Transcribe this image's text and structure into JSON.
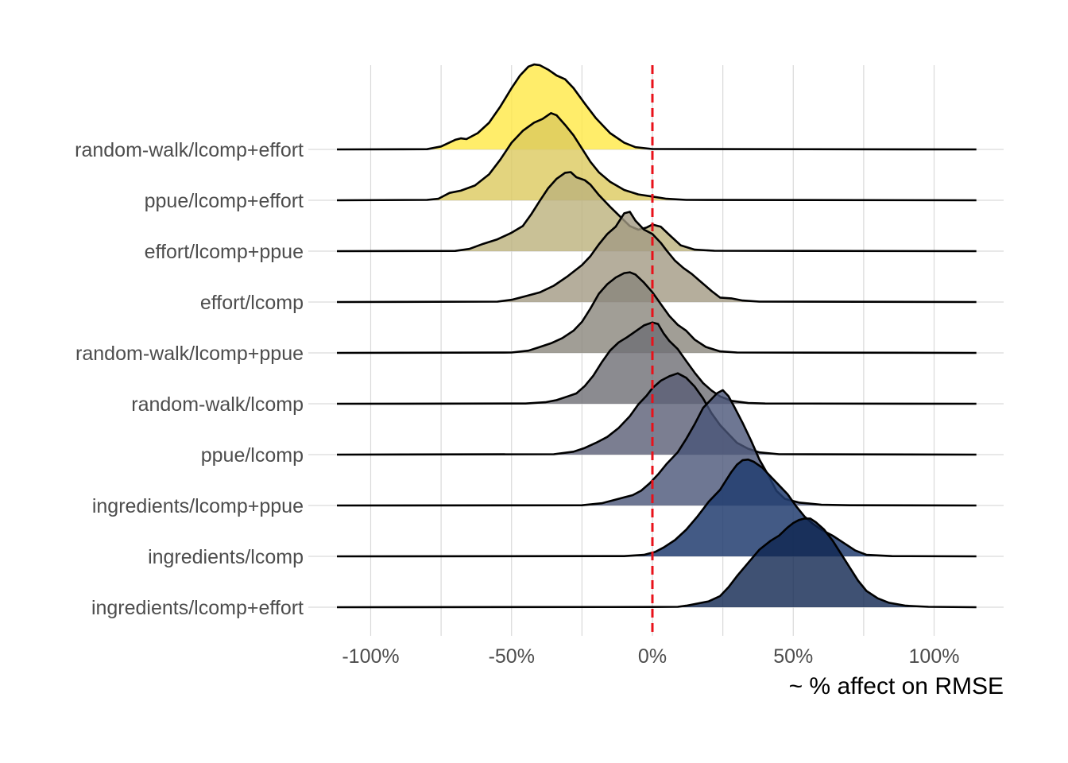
{
  "chart_data": {
    "type": "ridgeline",
    "title": "",
    "xlabel": "~ % affect on RMSE",
    "ylabel": "",
    "xlim": [
      -112,
      115
    ],
    "x_ticks": [
      -100,
      -50,
      0,
      50,
      100
    ],
    "x_tick_labels": [
      "-100%",
      "-50%",
      "0%",
      "50%",
      "100%"
    ],
    "grid": true,
    "reference_line": {
      "x": 0,
      "color": "#e8111a",
      "style": "dashed"
    },
    "categories": [
      "random-walk/lcomp+effort",
      "ppue/lcomp+effort",
      "effort/lcomp+ppue",
      "effort/lcomp",
      "random-walk/lcomp+ppue",
      "random-walk/lcomp",
      "ppue/lcomp",
      "ingredients/lcomp+ppue",
      "ingredients/lcomp",
      "ingredients/lcomp+effort"
    ],
    "series": [
      {
        "name": "random-walk/lcomp+effort",
        "color": "#ffe945",
        "opacity": 0.8,
        "density": [
          [
            -112,
            0
          ],
          [
            -80,
            0.003
          ],
          [
            -75,
            0.04
          ],
          [
            -70,
            0.13
          ],
          [
            -68,
            0.15
          ],
          [
            -66,
            0.14
          ],
          [
            -62,
            0.22
          ],
          [
            -58,
            0.36
          ],
          [
            -54,
            0.58
          ],
          [
            -50,
            0.83
          ],
          [
            -47,
            1.0
          ],
          [
            -44,
            1.12
          ],
          [
            -42,
            1.15
          ],
          [
            -40,
            1.14
          ],
          [
            -37,
            1.08
          ],
          [
            -34,
            1.0
          ],
          [
            -31,
            0.95
          ],
          [
            -28,
            0.83
          ],
          [
            -24,
            0.62
          ],
          [
            -20,
            0.42
          ],
          [
            -15,
            0.22
          ],
          [
            -10,
            0.09
          ],
          [
            -6,
            0.03
          ],
          [
            0,
            0.005
          ],
          [
            115,
            0
          ]
        ]
      },
      {
        "name": "ppue/lcomp+effort",
        "color": "#dcc95e",
        "opacity": 0.8,
        "density": [
          [
            -112,
            0
          ],
          [
            -80,
            0.005
          ],
          [
            -76,
            0.02
          ],
          [
            -74,
            0.06
          ],
          [
            -72,
            0.1
          ],
          [
            -68,
            0.13
          ],
          [
            -63,
            0.2
          ],
          [
            -58,
            0.35
          ],
          [
            -54,
            0.55
          ],
          [
            -50,
            0.78
          ],
          [
            -46,
            0.94
          ],
          [
            -42,
            1.05
          ],
          [
            -39,
            1.1
          ],
          [
            -36,
            1.18
          ],
          [
            -34,
            1.15
          ],
          [
            -31,
            1.02
          ],
          [
            -28,
            0.88
          ],
          [
            -25,
            0.7
          ],
          [
            -22,
            0.52
          ],
          [
            -19,
            0.38
          ],
          [
            -15,
            0.25
          ],
          [
            -10,
            0.14
          ],
          [
            -5,
            0.08
          ],
          [
            0,
            0.05
          ],
          [
            5,
            0.02
          ],
          [
            12,
            0.005
          ],
          [
            115,
            0
          ]
        ]
      },
      {
        "name": "effort/lcomp+ppue",
        "color": "#bcb27c",
        "opacity": 0.8,
        "density": [
          [
            -112,
            0
          ],
          [
            -70,
            0.003
          ],
          [
            -65,
            0.03
          ],
          [
            -60,
            0.1
          ],
          [
            -55,
            0.16
          ],
          [
            -50,
            0.25
          ],
          [
            -46,
            0.34
          ],
          [
            -43,
            0.5
          ],
          [
            -40,
            0.68
          ],
          [
            -37,
            0.85
          ],
          [
            -34,
            0.98
          ],
          [
            -31,
            1.06
          ],
          [
            -29,
            1.07
          ],
          [
            -27,
            1.0
          ],
          [
            -24,
            0.96
          ],
          [
            -22,
            0.9
          ],
          [
            -19,
            0.76
          ],
          [
            -15,
            0.6
          ],
          [
            -11,
            0.45
          ],
          [
            -8,
            0.34
          ],
          [
            -5,
            0.29
          ],
          [
            -2,
            0.32
          ],
          [
            0,
            0.36
          ],
          [
            3,
            0.33
          ],
          [
            6,
            0.22
          ],
          [
            10,
            0.08
          ],
          [
            15,
            0.02
          ],
          [
            22,
            0.005
          ],
          [
            115,
            0
          ]
        ]
      },
      {
        "name": "effort/lcomp",
        "color": "#a29a83",
        "opacity": 0.8,
        "density": [
          [
            -112,
            0
          ],
          [
            -55,
            0.005
          ],
          [
            -50,
            0.03
          ],
          [
            -45,
            0.08
          ],
          [
            -40,
            0.13
          ],
          [
            -35,
            0.22
          ],
          [
            -30,
            0.35
          ],
          [
            -25,
            0.5
          ],
          [
            -22,
            0.62
          ],
          [
            -19,
            0.78
          ],
          [
            -16,
            0.92
          ],
          [
            -13,
            1.02
          ],
          [
            -10,
            1.2
          ],
          [
            -8,
            1.22
          ],
          [
            -6,
            1.1
          ],
          [
            -3,
            0.98
          ],
          [
            0,
            0.92
          ],
          [
            3,
            0.8
          ],
          [
            5,
            0.7
          ],
          [
            8,
            0.56
          ],
          [
            11,
            0.46
          ],
          [
            14,
            0.38
          ],
          [
            17,
            0.28
          ],
          [
            21,
            0.15
          ],
          [
            24,
            0.06
          ],
          [
            28,
            0.05
          ],
          [
            32,
            0.02
          ],
          [
            38,
            0.005
          ],
          [
            115,
            0
          ]
        ]
      },
      {
        "name": "random-walk/lcomp+ppue",
        "color": "#8a867c",
        "opacity": 0.8,
        "density": [
          [
            -112,
            0
          ],
          [
            -50,
            0.005
          ],
          [
            -44,
            0.03
          ],
          [
            -40,
            0.08
          ],
          [
            -36,
            0.13
          ],
          [
            -32,
            0.2
          ],
          [
            -28,
            0.3
          ],
          [
            -25,
            0.42
          ],
          [
            -22,
            0.6
          ],
          [
            -19,
            0.8
          ],
          [
            -16,
            0.93
          ],
          [
            -13,
            1.02
          ],
          [
            -10,
            1.08
          ],
          [
            -8,
            1.09
          ],
          [
            -6,
            1.06
          ],
          [
            -3,
            0.95
          ],
          [
            0,
            0.82
          ],
          [
            3,
            0.66
          ],
          [
            6,
            0.5
          ],
          [
            9,
            0.38
          ],
          [
            12,
            0.3
          ],
          [
            15,
            0.18
          ],
          [
            19,
            0.08
          ],
          [
            24,
            0.02
          ],
          [
            30,
            0.005
          ],
          [
            115,
            0
          ]
        ]
      },
      {
        "name": "random-walk/lcomp",
        "color": "#6e6e74",
        "opacity": 0.8,
        "density": [
          [
            -112,
            0
          ],
          [
            -45,
            0.003
          ],
          [
            -38,
            0.02
          ],
          [
            -34,
            0.05
          ],
          [
            -30,
            0.1
          ],
          [
            -27,
            0.14
          ],
          [
            -24,
            0.24
          ],
          [
            -21,
            0.38
          ],
          [
            -18,
            0.56
          ],
          [
            -15,
            0.72
          ],
          [
            -12,
            0.83
          ],
          [
            -9,
            0.9
          ],
          [
            -6,
            0.98
          ],
          [
            -3,
            1.06
          ],
          [
            0,
            1.1
          ],
          [
            2,
            1.08
          ],
          [
            4,
            0.95
          ],
          [
            6,
            0.85
          ],
          [
            9,
            0.74
          ],
          [
            12,
            0.58
          ],
          [
            15,
            0.42
          ],
          [
            18,
            0.28
          ],
          [
            21,
            0.18
          ],
          [
            24,
            0.1
          ],
          [
            28,
            0.04
          ],
          [
            34,
            0.01
          ],
          [
            40,
            0.003
          ],
          [
            115,
            0
          ]
        ]
      },
      {
        "name": "ppue/lcomp",
        "color": "#5a5e75",
        "opacity": 0.8,
        "density": [
          [
            -112,
            0
          ],
          [
            -35,
            0.005
          ],
          [
            -28,
            0.04
          ],
          [
            -24,
            0.09
          ],
          [
            -20,
            0.16
          ],
          [
            -16,
            0.24
          ],
          [
            -12,
            0.36
          ],
          [
            -8,
            0.52
          ],
          [
            -5,
            0.68
          ],
          [
            -2,
            0.8
          ],
          [
            0,
            0.9
          ],
          [
            3,
            1.0
          ],
          [
            6,
            1.06
          ],
          [
            9,
            1.1
          ],
          [
            12,
            1.04
          ],
          [
            15,
            0.92
          ],
          [
            18,
            0.76
          ],
          [
            21,
            0.56
          ],
          [
            24,
            0.4
          ],
          [
            27,
            0.28
          ],
          [
            30,
            0.16
          ],
          [
            34,
            0.08
          ],
          [
            38,
            0.03
          ],
          [
            45,
            0.005
          ],
          [
            115,
            0
          ]
        ]
      },
      {
        "name": "ingredients/lcomp+ppue",
        "color": "#4a5578",
        "opacity": 0.8,
        "density": [
          [
            -112,
            0
          ],
          [
            -25,
            0.003
          ],
          [
            -18,
            0.03
          ],
          [
            -14,
            0.07
          ],
          [
            -10,
            0.11
          ],
          [
            -7,
            0.14
          ],
          [
            -4,
            0.2
          ],
          [
            -1,
            0.3
          ],
          [
            2,
            0.42
          ],
          [
            5,
            0.56
          ],
          [
            9,
            0.72
          ],
          [
            12,
            0.9
          ],
          [
            15,
            1.1
          ],
          [
            18,
            1.32
          ],
          [
            21,
            1.44
          ],
          [
            23,
            1.52
          ],
          [
            25,
            1.56
          ],
          [
            27,
            1.48
          ],
          [
            29,
            1.34
          ],
          [
            32,
            1.12
          ],
          [
            35,
            0.88
          ],
          [
            38,
            0.62
          ],
          [
            41,
            0.42
          ],
          [
            44,
            0.2
          ],
          [
            47,
            0.09
          ],
          [
            52,
            0.04
          ],
          [
            60,
            0.01
          ],
          [
            70,
            0.003
          ],
          [
            115,
            0
          ]
        ]
      },
      {
        "name": "ingredients/lcomp",
        "color": "#223d70",
        "opacity": 0.85,
        "density": [
          [
            -112,
            0
          ],
          [
            -10,
            0.003
          ],
          [
            -3,
            0.02
          ],
          [
            1,
            0.06
          ],
          [
            4,
            0.12
          ],
          [
            8,
            0.22
          ],
          [
            12,
            0.36
          ],
          [
            16,
            0.54
          ],
          [
            20,
            0.74
          ],
          [
            24,
            0.9
          ],
          [
            26,
            1.02
          ],
          [
            28,
            1.14
          ],
          [
            30,
            1.24
          ],
          [
            32,
            1.3
          ],
          [
            34,
            1.31
          ],
          [
            36,
            1.28
          ],
          [
            39,
            1.2
          ],
          [
            42,
            1.08
          ],
          [
            45,
            0.96
          ],
          [
            48,
            0.84
          ],
          [
            51,
            0.68
          ],
          [
            54,
            0.54
          ],
          [
            57,
            0.44
          ],
          [
            60,
            0.36
          ],
          [
            64,
            0.28
          ],
          [
            68,
            0.18
          ],
          [
            72,
            0.08
          ],
          [
            76,
            0.02
          ],
          [
            85,
            0.003
          ],
          [
            115,
            0
          ]
        ]
      },
      {
        "name": "ingredients/lcomp+effort",
        "color": "#0f2550",
        "opacity": 0.8,
        "density": [
          [
            -112,
            0
          ],
          [
            0,
            0.003
          ],
          [
            9,
            0.005
          ],
          [
            12,
            0.02
          ],
          [
            16,
            0.05
          ],
          [
            20,
            0.08
          ],
          [
            24,
            0.15
          ],
          [
            27,
            0.27
          ],
          [
            30,
            0.42
          ],
          [
            34,
            0.6
          ],
          [
            38,
            0.78
          ],
          [
            42,
            0.9
          ],
          [
            45,
            0.97
          ],
          [
            48,
            1.08
          ],
          [
            50,
            1.14
          ],
          [
            52,
            1.18
          ],
          [
            54,
            1.2
          ],
          [
            56,
            1.2
          ],
          [
            58,
            1.15
          ],
          [
            61,
            1.05
          ],
          [
            64,
            0.9
          ],
          [
            67,
            0.72
          ],
          [
            70,
            0.54
          ],
          [
            73,
            0.36
          ],
          [
            76,
            0.22
          ],
          [
            80,
            0.12
          ],
          [
            84,
            0.06
          ],
          [
            90,
            0.02
          ],
          [
            98,
            0.005
          ],
          [
            115,
            0
          ]
        ]
      }
    ]
  }
}
